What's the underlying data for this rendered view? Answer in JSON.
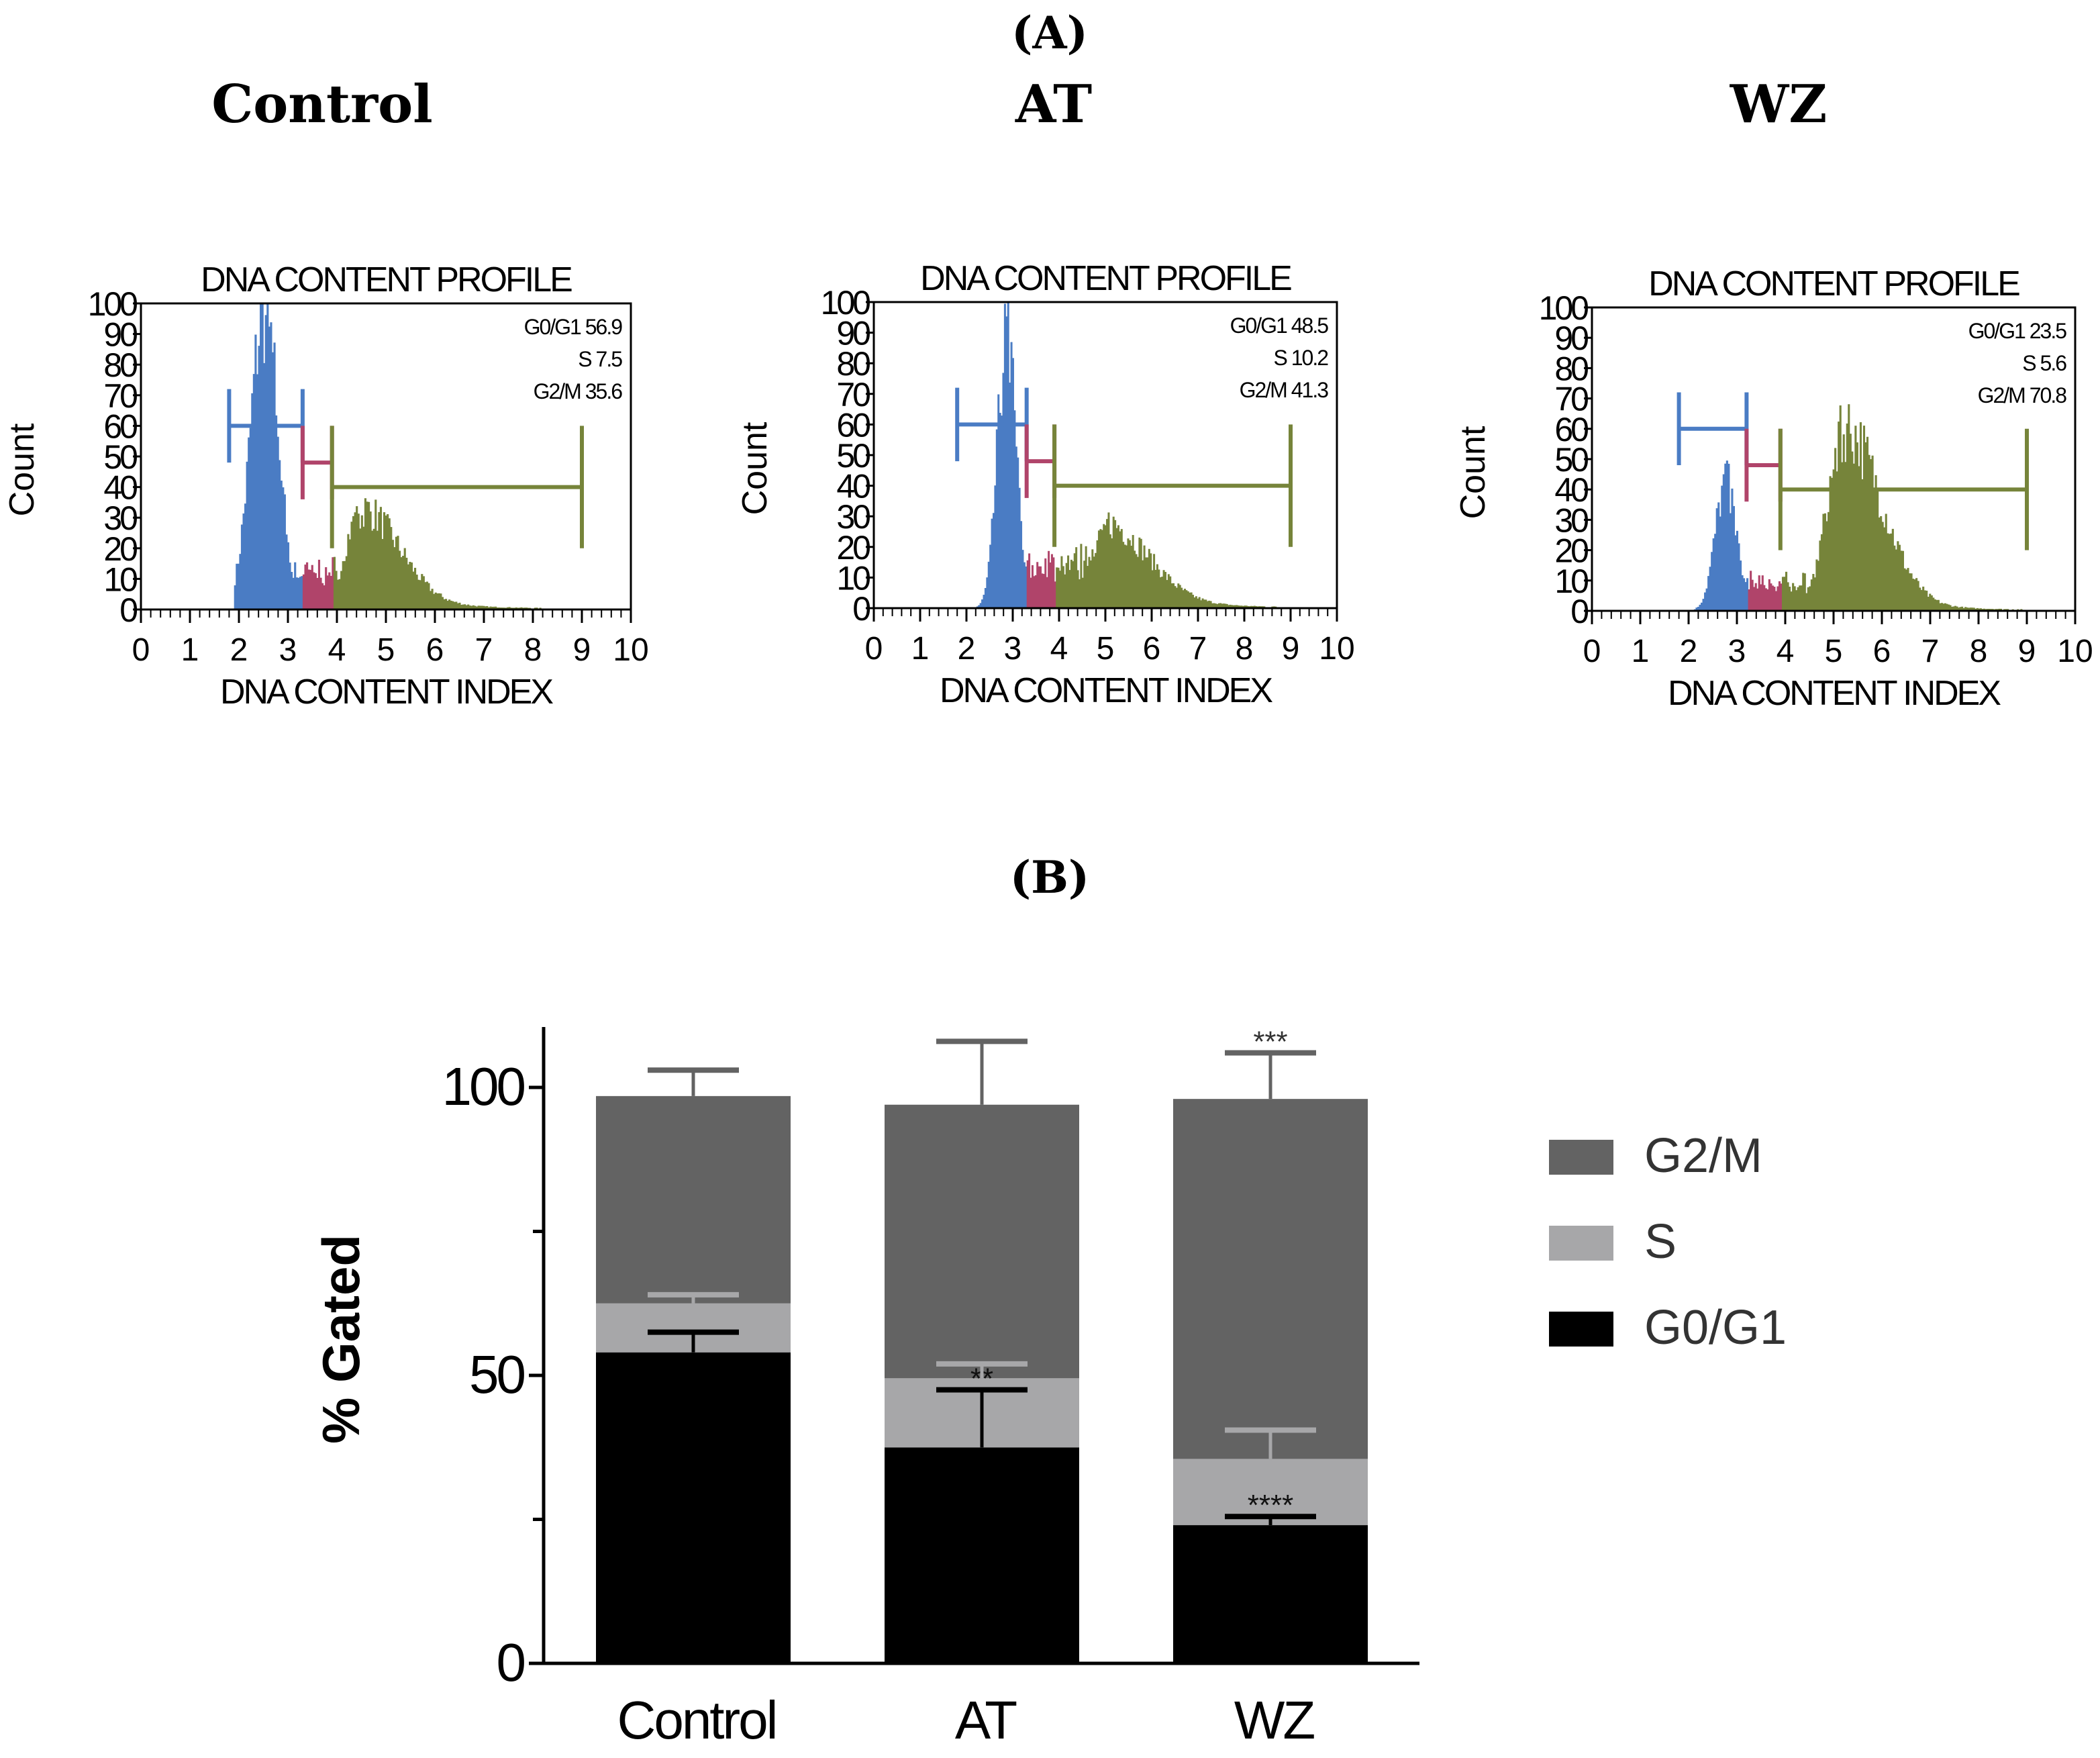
{
  "panel_a_label": "(A)",
  "panel_b_label": "(B)",
  "chart_data": [
    {
      "type": "bar",
      "panel": "A",
      "group_title": "Control",
      "title": "DNA CONTENT PROFILE",
      "xlabel": "DNA CONTENT INDEX",
      "ylabel": "Count",
      "xlim": [
        0,
        10
      ],
      "ylim": [
        0,
        100
      ],
      "xticks": [
        "0",
        "1",
        "2",
        "3",
        "4",
        "5",
        "6",
        "7",
        "8",
        "9",
        "10"
      ],
      "yticks": [
        "0",
        "10",
        "20",
        "30",
        "40",
        "50",
        "60",
        "70",
        "80",
        "90",
        "100"
      ],
      "stats": [
        "G0/G1 56.9",
        "S 7.5",
        "G2/M 35.6"
      ],
      "histogram_model": {
        "g1_mean": 2.5,
        "g1_sd": 0.28,
        "g1_peak": 98,
        "s_level": 12,
        "g2_mean": 4.5,
        "g2_sd": 0.5,
        "g2_peak": 30
      },
      "gates": [
        {
          "phase": "G0/G1",
          "from": 1.8,
          "to": 3.3,
          "level": 60,
          "color": "#4a7cc4"
        },
        {
          "phase": "S",
          "from": 3.3,
          "to": 3.9,
          "level": 48,
          "color": "#b0446a"
        },
        {
          "phase": "G2/M",
          "from": 3.9,
          "to": 9.0,
          "level": 40,
          "color": "#76843a"
        }
      ]
    },
    {
      "type": "bar",
      "panel": "A",
      "group_title": "AT",
      "title": "DNA CONTENT PROFILE",
      "xlabel": "DNA CONTENT INDEX",
      "ylabel": "Count",
      "xlim": [
        0,
        10
      ],
      "ylim": [
        0,
        100
      ],
      "xticks": [
        "0",
        "1",
        "2",
        "3",
        "4",
        "5",
        "6",
        "7",
        "8",
        "9",
        "10"
      ],
      "yticks": [
        "0",
        "10",
        "20",
        "30",
        "40",
        "50",
        "60",
        "70",
        "80",
        "90",
        "100"
      ],
      "stats": [
        "G0/G1 48.5",
        "S 10.2",
        "G2/M 41.3"
      ],
      "histogram_model": {
        "g1_mean": 2.85,
        "g1_sd": 0.2,
        "g1_peak": 88,
        "s_level": 14,
        "g2_mean": 5.0,
        "g2_sd": 0.6,
        "g2_peak": 25
      },
      "gates": [
        {
          "phase": "G0/G1",
          "from": 1.8,
          "to": 3.3,
          "level": 60,
          "color": "#4a7cc4"
        },
        {
          "phase": "S",
          "from": 3.3,
          "to": 3.9,
          "level": 48,
          "color": "#b0446a"
        },
        {
          "phase": "G2/M",
          "from": 3.9,
          "to": 9.0,
          "level": 40,
          "color": "#76843a"
        }
      ]
    },
    {
      "type": "bar",
      "panel": "A",
      "group_title": "WZ",
      "title": "DNA CONTENT PROFILE",
      "xlabel": "DNA CONTENT INDEX",
      "ylabel": "Count",
      "xlim": [
        0,
        10
      ],
      "ylim": [
        0,
        100
      ],
      "xticks": [
        "0",
        "1",
        "2",
        "3",
        "4",
        "5",
        "6",
        "7",
        "8",
        "9",
        "10"
      ],
      "yticks": [
        "0",
        "10",
        "20",
        "30",
        "40",
        "50",
        "60",
        "70",
        "80",
        "90",
        "100"
      ],
      "stats": [
        "G0/G1 23.5",
        "S 5.6",
        "G2/M 70.8"
      ],
      "histogram_model": {
        "g1_mean": 2.75,
        "g1_sd": 0.22,
        "g1_peak": 42,
        "s_level": 9,
        "g2_mean": 5.2,
        "g2_sd": 0.5,
        "g2_peak": 58
      },
      "gates": [
        {
          "phase": "G0/G1",
          "from": 1.8,
          "to": 3.2,
          "level": 60,
          "color": "#4a7cc4"
        },
        {
          "phase": "S",
          "from": 3.2,
          "to": 3.9,
          "level": 48,
          "color": "#b0446a"
        },
        {
          "phase": "G2/M",
          "from": 3.9,
          "to": 9.0,
          "level": 40,
          "color": "#76843a"
        }
      ]
    },
    {
      "type": "bar",
      "panel": "B",
      "stacked": true,
      "title": "",
      "xlabel": "",
      "ylabel": "%  Gated",
      "ylim": [
        0,
        110
      ],
      "yticks": [
        "0",
        "50",
        "100"
      ],
      "minor_yticks": [
        25,
        75
      ],
      "categories": [
        "Control",
        "AT",
        "WZ"
      ],
      "series": [
        {
          "name": "G0/G1",
          "color": "#000000",
          "values": [
            54,
            37.5,
            24
          ],
          "error_top": [
            57.5,
            47.5,
            25.5
          ],
          "significance": [
            "",
            "**",
            "****"
          ]
        },
        {
          "name": "S",
          "color": "#a7a7a9",
          "values": [
            8.5,
            12,
            11.5
          ],
          "error_top": [
            64,
            52,
            40.5
          ],
          "significance": [
            "",
            "",
            ""
          ]
        },
        {
          "name": "G2/M",
          "color": "#636363",
          "values": [
            36,
            47.5,
            62.5
          ],
          "error_top": [
            103,
            108,
            106
          ],
          "significance": [
            "",
            "",
            "***"
          ]
        }
      ],
      "legend": [
        "G2/M",
        "S",
        "G0/G1"
      ],
      "legend_position": "right"
    }
  ]
}
